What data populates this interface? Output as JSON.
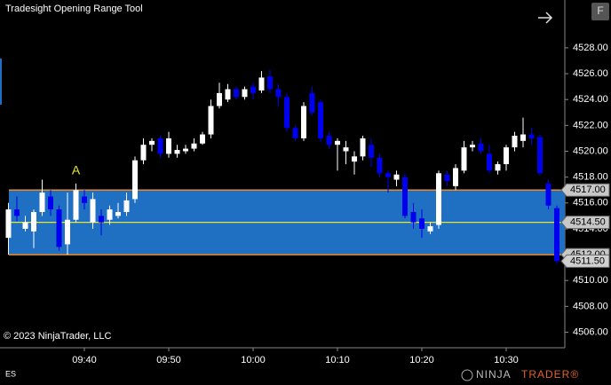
{
  "header": {
    "title": "Tradesight Opening Range Tool",
    "button": "F"
  },
  "footer": {
    "copyright": "© 2023 NinjaTrader, LLC",
    "instrument": "ES",
    "logo_first": "NINJA",
    "logo_second": "TRADER®"
  },
  "chart_data": {
    "type": "candlestick",
    "categories": [
      null,
      null,
      null,
      null,
      null,
      null,
      null,
      null,
      null,
      "09:40",
      null,
      null,
      null,
      null,
      null,
      null,
      null,
      null,
      null,
      "09:50",
      null,
      null,
      null,
      null,
      null,
      null,
      null,
      null,
      null,
      "10:00",
      null,
      null,
      null,
      null,
      null,
      null,
      null,
      null,
      null,
      "10:10",
      null,
      null,
      null,
      null,
      null,
      null,
      null,
      null,
      null,
      "10:20",
      null,
      null,
      null,
      null,
      null,
      null,
      null,
      null,
      null,
      "10:30",
      null,
      null,
      null,
      null,
      null,
      null
    ],
    "open": [
      4513.3,
      4515.5,
      4514,
      4513.8,
      4515.3,
      4516.5,
      4515.5,
      4512.8,
      4514.7,
      4516.5,
      4514.5,
      4515,
      4514.7,
      4515,
      4515.3,
      4516.3,
      4519.3,
      4520.5,
      4521,
      4519.8,
      4519.8,
      4520,
      4520.2,
      4520.6,
      4521.3,
      4523.5,
      4524,
      4524.8,
      4524.2,
      4525,
      4524.7,
      4525.8,
      4524.8,
      4524.2,
      4521.8,
      4521,
      4524.5,
      4523.8,
      4521.2,
      4520.5,
      4520,
      4519.2,
      4519.6,
      4520.5,
      4519.5,
      4518.3,
      4517.8,
      4518,
      4515.3,
      4514.8,
      4513.8,
      4514.3,
      4518.2,
      4517.3,
      4518.5,
      4520.3,
      4520.6,
      4519.8,
      4518.5,
      4519,
      4520.3,
      4520.8,
      4521.3,
      4521.1,
      4517.5,
      4515.6
    ],
    "high": [
      4516,
      4516.5,
      4515,
      4515.5,
      4517.8,
      4517,
      4515.8,
      4516.8,
      4517.5,
      4517,
      4516.8,
      4515.5,
      4515.8,
      4516,
      4516.8,
      4519.6,
      4521,
      4521,
      4521.2,
      4521.5,
      4520.5,
      4520.5,
      4521,
      4521.5,
      4524,
      4525.3,
      4525.2,
      4525,
      4525,
      4525.3,
      4526.2,
      4526.3,
      4525.2,
      4524.5,
      4522,
      4523.8,
      4525,
      4524,
      4521.5,
      4521,
      4520.8,
      4520,
      4521.2,
      4521,
      4519.8,
      4518.5,
      4518.5,
      4518.3,
      4516,
      4515.5,
      4514.5,
      4518.5,
      4518.5,
      4519,
      4520.8,
      4520.8,
      4521,
      4520.5,
      4519.2,
      4520.5,
      4521.5,
      4522.6,
      4521.8,
      4521.3,
      4517.8,
      4515.8
    ],
    "low": [
      4512,
      4514.6,
      4513.8,
      4512.5,
      4515,
      4515,
      4512.3,
      4512,
      4514.5,
      4515.5,
      4514,
      4513.5,
      4514.3,
      4514.8,
      4515,
      4516,
      4519,
      4520,
      4519.5,
      4519.5,
      4519.5,
      4519.8,
      4520,
      4520.5,
      4521,
      4523.3,
      4523.8,
      4524,
      4524,
      4524,
      4524.5,
      4524.5,
      4523.5,
      4521.5,
      4520.8,
      4520.8,
      4522.8,
      4520.7,
      4520.2,
      4518.5,
      4519,
      4518.2,
      4519.3,
      4518.8,
      4518,
      4516.8,
      4517.3,
      4514.8,
      4514,
      4513.3,
      4513.6,
      4514,
      4517.3,
      4517,
      4518.3,
      4520,
      4519.8,
      4518.3,
      4518.2,
      4518.5,
      4520,
      4520.3,
      4520.5,
      4518.1,
      4515.5,
      4511.3
    ],
    "close": [
      4515.5,
      4515,
      4514.5,
      4515.3,
      4516.8,
      4515.5,
      4512.6,
      4514.7,
      4517,
      4516,
      4516.3,
      4514.5,
      4515.5,
      4515.3,
      4516.2,
      4519.3,
      4520.5,
      4520.8,
      4519.8,
      4521,
      4520.1,
      4520.2,
      4520.6,
      4521.3,
      4523.5,
      4524.5,
      4524.8,
      4524.2,
      4524.8,
      4524.5,
      4525.7,
      4524.8,
      4524.2,
      4521.8,
      4521,
      4523.5,
      4523,
      4521,
      4520.5,
      4520.8,
      4520.3,
      4519.6,
      4521,
      4519.5,
      4518.3,
      4518,
      4518.2,
      4515,
      4514.5,
      4514,
      4514.2,
      4518.3,
      4517.7,
      4518.7,
      4520.3,
      4520.5,
      4520,
      4518.5,
      4519,
      4520.3,
      4521.2,
      4521.3,
      4521,
      4518.3,
      4515.8,
      4511.5
    ],
    "up_color": "#ffffff",
    "down_color": "#0000f0",
    "ylim": [
      4504.8,
      4531.7
    ],
    "yticks": [
      {
        "value": 4506,
        "label": "4506.00"
      },
      {
        "value": 4508,
        "label": "4508.00"
      },
      {
        "value": 4510,
        "label": "4510.00"
      },
      {
        "value": 4512,
        "label": "4512.00"
      },
      {
        "value": 4514,
        "label": "4514.00"
      },
      {
        "value": 4516,
        "label": "4516.00"
      },
      {
        "value": 4518,
        "label": "4518.00"
      },
      {
        "value": 4520,
        "label": "4520.00"
      },
      {
        "value": 4522,
        "label": "4522.00"
      },
      {
        "value": 4524,
        "label": "4524.00"
      },
      {
        "value": 4526,
        "label": "4526.00"
      },
      {
        "value": 4528,
        "label": "4528.00"
      }
    ],
    "range": {
      "high": {
        "value": 4517,
        "label": "4517.00"
      },
      "mid": {
        "value": 4514.5,
        "label": "4514.50"
      },
      "low": {
        "value": 4512,
        "label": "4512.00"
      },
      "fill": "#1f6fc2",
      "edge_color": "#f08c28",
      "mid_color": "#e8e830"
    },
    "last_price": {
      "value": 4511.5,
      "label": "4511.50"
    },
    "annotation": "A",
    "grid": false
  }
}
